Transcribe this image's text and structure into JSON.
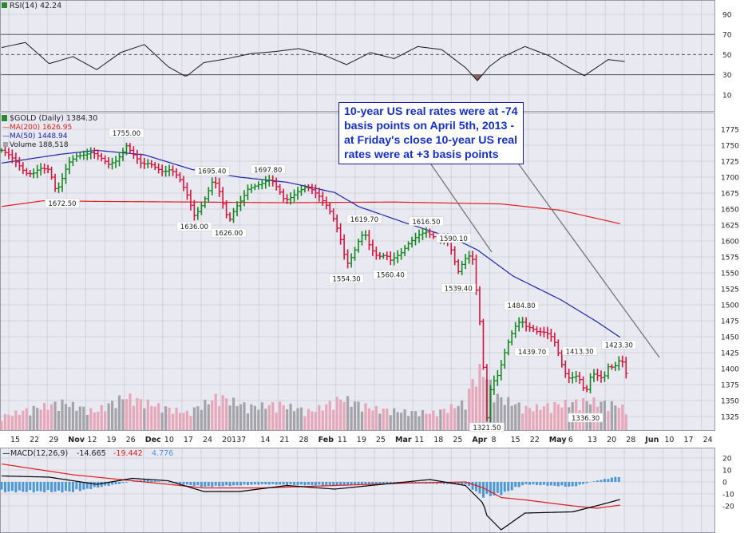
{
  "colors": {
    "background": "#e9e9f2",
    "grid": "#d2d2dc",
    "up_bar": "#12871e",
    "down_bar": "#d5143c",
    "ma200": "#e21b1b",
    "ma50": "#1c23a8",
    "volume_up": "#a3a3a8",
    "volume_down": "#e7a7b8",
    "rsi_line": "#1a1a1a",
    "rsi_fill": "#8c5b5b",
    "macd_line": "#000000",
    "signal_line": "#e21b1b",
    "histogram": "#4c98d6",
    "annotation_text": "#1530c9"
  },
  "rsi_panel": {
    "legend": "RSI(14) 42.24",
    "y_ticks": [
      "90",
      "70",
      "50",
      "30",
      "10"
    ]
  },
  "price_panel": {
    "legend": {
      "symbol": "$GOLD (Daily) 1384.30",
      "ma200": "MA(200) 1626.95",
      "ma50": "MA(50) 1448.94",
      "volume": "Volume 188,518"
    },
    "price_labels": [
      "1755.00",
      "1672.50",
      "1695.40",
      "1636.00",
      "1626.00",
      "1697.80",
      "1619.70",
      "1554.30",
      "1560.40",
      "1616.50",
      "1590.10",
      "1539.40",
      "1321.50",
      "1484.80",
      "1439.70",
      "1413.30",
      "1336.30",
      "1423.30"
    ],
    "annotation_lines": [
      "10-year US real rates were at -74",
      "basis points on April 5th, 2013 -",
      "at Friday's close 10-year US real",
      "rates were at +3 basis points"
    ]
  },
  "x_axis": {
    "tick_labels": [
      "15",
      "22",
      "29",
      "Nov",
      "12",
      "19",
      "26",
      "Dec",
      "10",
      "17",
      "24",
      "2013",
      "7",
      "14",
      "21",
      "28",
      "Feb",
      "11",
      "19",
      "25",
      "Mar",
      "11",
      "18",
      "25",
      "Apr",
      "8",
      "15",
      "22",
      "May",
      "6",
      "13",
      "20",
      "28",
      "Jun",
      "10",
      "17",
      "24"
    ]
  },
  "macd_panel": {
    "legend_name": "MACD(12,26,9)",
    "legend_macd": "-14.665",
    "legend_signal": "-19.442",
    "legend_hist": "4.776",
    "y_ticks": [
      "20",
      "10",
      "0",
      "-10",
      "-20"
    ]
  },
  "chart_data": {
    "type": "candlestick",
    "title": "$GOLD (Daily) 1384.30",
    "xlabel": "",
    "ylabel": "",
    "ylim": [
      1300,
      1790
    ],
    "y_ticks": [
      1325,
      1350,
      1375,
      1400,
      1425,
      1450,
      1475,
      1500,
      1525,
      1550,
      1575,
      1600,
      1625,
      1650,
      1675,
      1700,
      1725,
      1750,
      1775
    ],
    "close_points": [
      [
        0,
        1742
      ],
      [
        7,
        1734
      ],
      [
        14,
        1720
      ],
      [
        20,
        1706
      ],
      [
        26,
        1705
      ],
      [
        32,
        1714
      ],
      [
        40,
        1712
      ],
      [
        46,
        1676
      ],
      [
        51,
        1698
      ],
      [
        56,
        1722
      ],
      [
        63,
        1733
      ],
      [
        70,
        1735
      ],
      [
        76,
        1739
      ],
      [
        83,
        1731
      ],
      [
        90,
        1720
      ],
      [
        96,
        1725
      ],
      [
        101,
        1736
      ],
      [
        105,
        1749
      ],
      [
        111,
        1735
      ],
      [
        118,
        1720
      ],
      [
        124,
        1722
      ],
      [
        130,
        1714
      ],
      [
        136,
        1708
      ],
      [
        142,
        1712
      ],
      [
        149,
        1700
      ],
      [
        156,
        1672
      ],
      [
        162,
        1640
      ],
      [
        166,
        1648
      ],
      [
        172,
        1670
      ],
      [
        177,
        1692
      ],
      [
        181,
        1690
      ],
      [
        186,
        1658
      ],
      [
        191,
        1630
      ],
      [
        196,
        1650
      ],
      [
        202,
        1665
      ],
      [
        207,
        1681
      ],
      [
        213,
        1686
      ],
      [
        219,
        1690
      ],
      [
        224,
        1696
      ],
      [
        228,
        1693
      ],
      [
        233,
        1680
      ],
      [
        238,
        1663
      ],
      [
        244,
        1669
      ],
      [
        249,
        1677
      ],
      [
        255,
        1684
      ],
      [
        260,
        1682
      ],
      [
        267,
        1670
      ],
      [
        273,
        1656
      ],
      [
        278,
        1640
      ],
      [
        282,
        1620
      ],
      [
        286,
        1596
      ],
      [
        290,
        1562
      ],
      [
        294,
        1574
      ],
      [
        298,
        1590
      ],
      [
        301,
        1604
      ],
      [
        305,
        1614
      ],
      [
        309,
        1594
      ],
      [
        314,
        1578
      ],
      [
        318,
        1576
      ],
      [
        323,
        1578
      ],
      [
        327,
        1570
      ],
      [
        332,
        1576
      ],
      [
        337,
        1583
      ],
      [
        341,
        1594
      ],
      [
        347,
        1604
      ],
      [
        352,
        1611
      ],
      [
        357,
        1614
      ],
      [
        361,
        1609
      ],
      [
        367,
        1602
      ],
      [
        372,
        1604
      ],
      [
        376,
        1599
      ],
      [
        380,
        1573
      ],
      [
        384,
        1552
      ],
      [
        388,
        1567
      ],
      [
        392,
        1578
      ],
      [
        396,
        1571
      ],
      [
        399,
        1523
      ],
      [
        402,
        1474
      ],
      [
        405,
        1402
      ],
      [
        408,
        1323
      ],
      [
        411,
        1367
      ],
      [
        414,
        1381
      ],
      [
        418,
        1392
      ],
      [
        421,
        1413
      ],
      [
        425,
        1437
      ],
      [
        429,
        1455
      ],
      [
        433,
        1470
      ],
      [
        437,
        1475
      ],
      [
        441,
        1466
      ],
      [
        446,
        1463
      ],
      [
        450,
        1458
      ],
      [
        456,
        1457
      ],
      [
        461,
        1453
      ],
      [
        466,
        1438
      ],
      [
        470,
        1411
      ],
      [
        474,
        1392
      ],
      [
        478,
        1383
      ],
      [
        482,
        1390
      ],
      [
        486,
        1383
      ],
      [
        491,
        1361
      ],
      [
        496,
        1393
      ],
      [
        501,
        1389
      ],
      [
        506,
        1384
      ],
      [
        510,
        1403
      ],
      [
        515,
        1402
      ],
      [
        519,
        1412
      ],
      [
        523,
        1410
      ],
      [
        526,
        1384
      ]
    ],
    "volume_points": [
      [
        0,
        0.22
      ],
      [
        26,
        0.35
      ],
      [
        52,
        0.45
      ],
      [
        78,
        0.3
      ],
      [
        104,
        0.55
      ],
      [
        130,
        0.4
      ],
      [
        156,
        0.28
      ],
      [
        182,
        0.55
      ],
      [
        208,
        0.38
      ],
      [
        234,
        0.42
      ],
      [
        260,
        0.3
      ],
      [
        286,
        0.52
      ],
      [
        312,
        0.35
      ],
      [
        338,
        0.3
      ],
      [
        364,
        0.28
      ],
      [
        390,
        0.45
      ],
      [
        396,
        0.8
      ],
      [
        404,
        1.0
      ],
      [
        416,
        0.55
      ],
      [
        442,
        0.35
      ],
      [
        468,
        0.42
      ],
      [
        494,
        0.48
      ],
      [
        520,
        0.4
      ],
      [
        526,
        0.3
      ]
    ],
    "ma200_points": [
      [
        0,
        1654
      ],
      [
        35,
        1663
      ],
      [
        80,
        1662
      ],
      [
        160,
        1661
      ],
      [
        240,
        1660
      ],
      [
        330,
        1661
      ],
      [
        420,
        1658
      ],
      [
        470,
        1648
      ],
      [
        520,
        1627
      ]
    ],
    "ma50_points": [
      [
        0,
        1722
      ],
      [
        50,
        1736
      ],
      [
        80,
        1742
      ],
      [
        120,
        1735
      ],
      [
        160,
        1712
      ],
      [
        200,
        1700
      ],
      [
        240,
        1692
      ],
      [
        280,
        1676
      ],
      [
        300,
        1654
      ],
      [
        340,
        1628
      ],
      [
        380,
        1604
      ],
      [
        400,
        1586
      ],
      [
        430,
        1545
      ],
      [
        470,
        1508
      ],
      [
        500,
        1474
      ],
      [
        520,
        1449
      ]
    ],
    "rsi_points": [
      [
        0,
        57
      ],
      [
        20,
        62
      ],
      [
        40,
        41
      ],
      [
        60,
        48
      ],
      [
        80,
        35
      ],
      [
        100,
        52
      ],
      [
        120,
        60
      ],
      [
        140,
        38
      ],
      [
        155,
        28
      ],
      [
        170,
        42
      ],
      [
        190,
        46
      ],
      [
        210,
        51
      ],
      [
        230,
        53
      ],
      [
        250,
        56
      ],
      [
        270,
        50
      ],
      [
        290,
        40
      ],
      [
        310,
        52
      ],
      [
        330,
        46
      ],
      [
        350,
        58
      ],
      [
        370,
        55
      ],
      [
        390,
        37
      ],
      [
        400,
        24
      ],
      [
        410,
        38
      ],
      [
        420,
        47
      ],
      [
        440,
        58
      ],
      [
        460,
        49
      ],
      [
        480,
        35
      ],
      [
        490,
        29
      ],
      [
        510,
        45
      ],
      [
        525,
        43
      ]
    ],
    "macd_points": [
      [
        0,
        5
      ],
      [
        40,
        4
      ],
      [
        80,
        -2
      ],
      [
        110,
        3
      ],
      [
        140,
        1
      ],
      [
        170,
        -8
      ],
      [
        200,
        -8
      ],
      [
        240,
        -3
      ],
      [
        280,
        -6
      ],
      [
        320,
        -2
      ],
      [
        360,
        2
      ],
      [
        390,
        -3
      ],
      [
        405,
        -18
      ],
      [
        408,
        -28
      ],
      [
        420,
        -40
      ],
      [
        440,
        -26
      ],
      [
        480,
        -25
      ],
      [
        500,
        -20
      ],
      [
        520,
        -14.7
      ]
    ],
    "signal_points": [
      [
        0,
        15
      ],
      [
        60,
        6
      ],
      [
        120,
        0
      ],
      [
        170,
        -5
      ],
      [
        220,
        -5
      ],
      [
        280,
        -3
      ],
      [
        340,
        -1
      ],
      [
        390,
        0
      ],
      [
        405,
        -5
      ],
      [
        420,
        -13
      ],
      [
        440,
        -15
      ],
      [
        480,
        -20
      ],
      [
        500,
        -22
      ],
      [
        520,
        -19.4
      ]
    ],
    "histogram_points": [
      [
        0,
        -8
      ],
      [
        60,
        -8
      ],
      [
        120,
        2
      ],
      [
        170,
        -4
      ],
      [
        220,
        -2
      ],
      [
        280,
        -3
      ],
      [
        340,
        -1
      ],
      [
        390,
        -2
      ],
      [
        405,
        -12
      ],
      [
        420,
        -10
      ],
      [
        440,
        -2
      ],
      [
        480,
        -4
      ],
      [
        500,
        1
      ],
      [
        520,
        4.8
      ]
    ]
  }
}
